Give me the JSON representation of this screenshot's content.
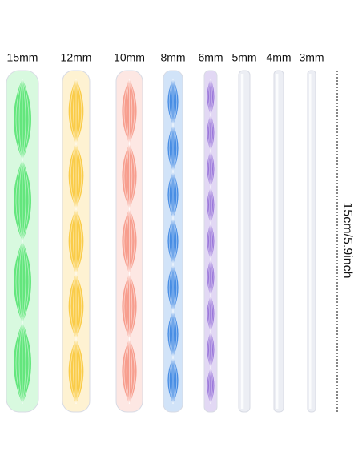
{
  "rods": [
    {
      "label": "15mm"
    },
    {
      "label": "12mm"
    },
    {
      "label": "10mm"
    },
    {
      "label": "8mm"
    },
    {
      "label": "6mm"
    },
    {
      "label": "5mm"
    },
    {
      "label": "4mm"
    },
    {
      "label": "3mm"
    }
  ],
  "dimension": "15cm/5.9inch"
}
